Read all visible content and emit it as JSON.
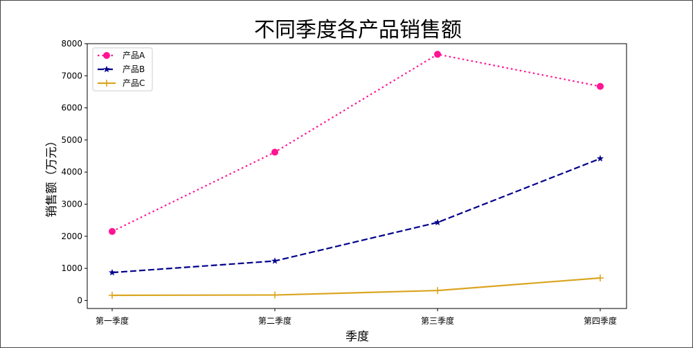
{
  "chart_data": {
    "type": "line",
    "title": "不同季度各产品销售额",
    "xlabel": "季度",
    "ylabel": "销售额（万元）",
    "categories": [
      "第一季度",
      "第二季度",
      "第三季度",
      "第四季度"
    ],
    "ylim": [
      -250,
      8000
    ],
    "yticks": [
      0,
      1000,
      2000,
      3000,
      4000,
      5000,
      6000,
      7000,
      8000
    ],
    "grid": false,
    "legend_position": "top-left",
    "series": [
      {
        "name": "产品A",
        "values": [
          2150,
          4620,
          7670,
          6670
        ],
        "color": "#ff1493",
        "dash": "dotted",
        "marker": "circle"
      },
      {
        "name": "产品B",
        "values": [
          870,
          1230,
          2430,
          4420
        ],
        "color": "#00008b",
        "dash": "dashed",
        "marker": "star"
      },
      {
        "name": "产品C",
        "values": [
          160,
          170,
          310,
          700
        ],
        "color": "#daa520",
        "dash": "solid",
        "marker": "plus"
      }
    ]
  }
}
